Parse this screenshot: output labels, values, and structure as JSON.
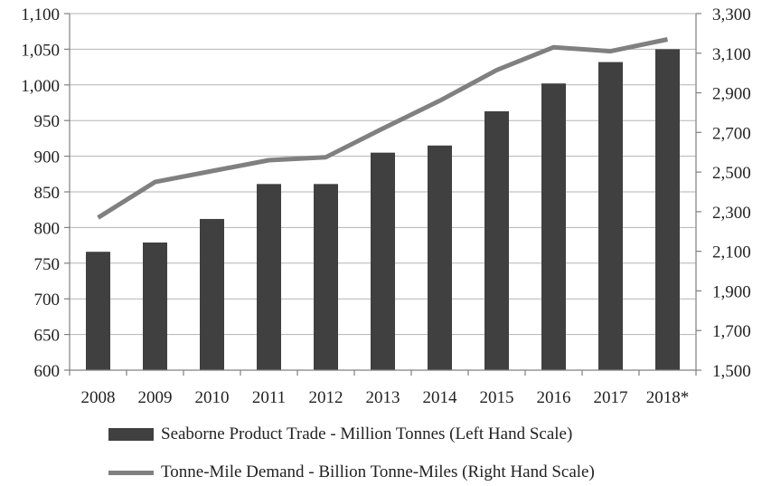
{
  "chart_data": {
    "type": "bar",
    "categories": [
      "2008",
      "2009",
      "2010",
      "2011",
      "2012",
      "2013",
      "2014",
      "2015",
      "2016",
      "2017",
      "2018*"
    ],
    "series": [
      {
        "name": "Seaborne Product Trade - Million Tonnes (Left Hand Scale)",
        "type": "bar",
        "axis": "left",
        "color": "#404040",
        "values": [
          766,
          779,
          812,
          861,
          861,
          905,
          915,
          963,
          1002,
          1032,
          1050
        ]
      },
      {
        "name": "Tonne-Mile Demand - Billion Tonne-Miles (Right Hand Scale)",
        "type": "line",
        "axis": "right",
        "color": "#808080",
        "values": [
          2270,
          2450,
          2505,
          2560,
          2575,
          2720,
          2860,
          3015,
          3130,
          3110,
          3170
        ]
      }
    ],
    "y_left": {
      "lim": [
        600,
        1100
      ],
      "ticks": [
        600,
        650,
        700,
        750,
        800,
        850,
        900,
        950,
        1000,
        1050,
        1100
      ],
      "tick_labels": [
        "600",
        "650",
        "700",
        "750",
        "800",
        "850",
        "900",
        "950",
        "1,000",
        "1,050",
        "1,100"
      ]
    },
    "y_right": {
      "lim": [
        1500,
        3300
      ],
      "ticks": [
        1500,
        1700,
        1900,
        2100,
        2300,
        2500,
        2700,
        2900,
        3100,
        3300
      ],
      "tick_labels": [
        "1,500",
        "1,700",
        "1,900",
        "2,100",
        "2,300",
        "2,500",
        "2,700",
        "2,900",
        "3,100",
        "3,300"
      ]
    },
    "grid": true,
    "legend_position": "bottom"
  }
}
